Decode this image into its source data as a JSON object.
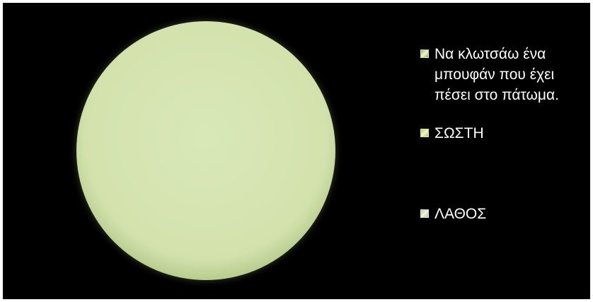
{
  "chart_data": {
    "type": "pie",
    "title": "",
    "categories": [
      "Να κλωτσάω ένα μπουφάν που έχει πέσει στο πάτωμα.",
      "ΣΩΣΤΗ",
      "ΛΑΘΟΣ"
    ],
    "values": [
      0,
      100,
      0
    ],
    "legend_position": "right",
    "colors": [
      "#8cb33a",
      "#b4c832",
      "#b9c0a2"
    ],
    "slice_fill": "#d5e4b2"
  }
}
